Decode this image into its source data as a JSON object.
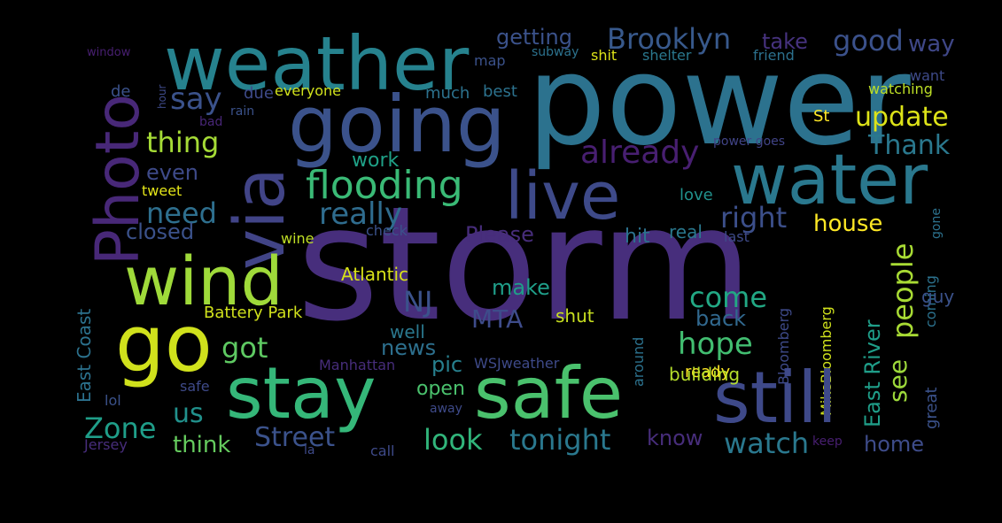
{
  "words": {
    "storm": {
      "text": "storm",
      "color": "#472e7c"
    },
    "power": {
      "text": "power",
      "color": "#2c728e"
    },
    "weather": {
      "text": "weather",
      "color": "#26828e"
    },
    "going": {
      "text": "going",
      "color": "#3b528b"
    },
    "stay": {
      "text": "stay",
      "color": "#35b779"
    },
    "safe": {
      "text": "safe",
      "color": "#4ac16d"
    },
    "still": {
      "text": "still",
      "color": "#3e4989"
    },
    "water": {
      "text": "water",
      "color": "#2a788e"
    },
    "live": {
      "text": "live",
      "color": "#3e4a89"
    },
    "wind": {
      "text": "wind",
      "color": "#9fda3a"
    },
    "go": {
      "text": "go",
      "color": "#d0e11c"
    },
    "via": {
      "text": "via",
      "color": "#414487"
    },
    "photo": {
      "text": "Photo",
      "color": "#482878"
    },
    "flooding": {
      "text": "flooding",
      "color": "#3aba76"
    },
    "brooklyn": {
      "text": "Brooklyn",
      "color": "#38598c"
    },
    "getting": {
      "text": "getting",
      "color": "#3b528b"
    },
    "take": {
      "text": "take",
      "color": "#46327e"
    },
    "good": {
      "text": "good",
      "color": "#3b518b"
    },
    "way": {
      "text": "way",
      "color": "#3f4788"
    },
    "update": {
      "text": "update",
      "color": "#dde318"
    },
    "thank": {
      "text": "Thank",
      "color": "#2a788e"
    },
    "already": {
      "text": "already",
      "color": "#481f71"
    },
    "say": {
      "text": "say",
      "color": "#3b528b"
    },
    "thing": {
      "text": "thing",
      "color": "#a5db36"
    },
    "need": {
      "text": "need",
      "color": "#2e6f8e"
    },
    "really": {
      "text": "really",
      "color": "#2f6c8e"
    },
    "right": {
      "text": "right",
      "color": "#3c4f8a"
    },
    "people": {
      "text": "people",
      "color": "#a8db34"
    },
    "house": {
      "text": "house",
      "color": "#fde725"
    },
    "come": {
      "text": "come",
      "color": "#22a884"
    },
    "hope": {
      "text": "hope",
      "color": "#42be71"
    },
    "make": {
      "text": "make",
      "color": "#1f9e89"
    },
    "nj": {
      "text": "NJ",
      "color": "#3b528b"
    },
    "mta": {
      "text": "MTA",
      "color": "#3e4c8a"
    },
    "got": {
      "text": "got",
      "color": "#5ec962"
    },
    "street": {
      "text": "Street",
      "color": "#3b528b"
    },
    "look": {
      "text": "look",
      "color": "#31b57b"
    },
    "tonight": {
      "text": "tonight",
      "color": "#2a788e"
    },
    "watch": {
      "text": "watch",
      "color": "#2a788e"
    },
    "zone": {
      "text": "Zone",
      "color": "#1f9e89"
    },
    "us": {
      "text": "us",
      "color": "#21918c"
    },
    "think": {
      "text": "think",
      "color": "#65cb5e"
    },
    "home": {
      "text": "home",
      "color": "#3e4c8a"
    },
    "know": {
      "text": "know",
      "color": "#472d7b"
    },
    "back": {
      "text": "back",
      "color": "#31688e"
    },
    "even": {
      "text": "even",
      "color": "#3e4a89"
    },
    "work": {
      "text": "work",
      "color": "#1fa187"
    },
    "closed": {
      "text": "closed",
      "color": "#3b528b"
    },
    "please": {
      "text": "Please",
      "color": "#472d7b"
    },
    "hit": {
      "text": "hit",
      "color": "#2c728e"
    },
    "real": {
      "text": "real",
      "color": "#2a788e"
    },
    "news": {
      "text": "news",
      "color": "#2d708e"
    },
    "pic": {
      "text": "pic",
      "color": "#27808e"
    },
    "open": {
      "text": "open",
      "color": "#4ac16d"
    },
    "atlantic": {
      "text": "Atlantic",
      "color": "#d8e219"
    },
    "battery_park": {
      "text": "Battery Park",
      "color": "#d0e11c"
    },
    "well": {
      "text": "well",
      "color": "#2a788e"
    },
    "shut": {
      "text": "shut",
      "color": "#c8e020"
    },
    "ready": {
      "text": "ready",
      "color": "#fde725"
    },
    "building": {
      "text": "building",
      "color": "#b5de2b"
    },
    "st": {
      "text": "St",
      "color": "#fde725"
    },
    "love": {
      "text": "love",
      "color": "#21918c"
    },
    "tweet": {
      "text": "tweet",
      "color": "#e2e418"
    },
    "wine": {
      "text": "wine",
      "color": "#c0df25"
    },
    "check": {
      "text": "check",
      "color": "#3b528b"
    },
    "last": {
      "text": "last",
      "color": "#3e4a89"
    },
    "guy": {
      "text": "guy",
      "color": "#3b528b"
    },
    "subway": {
      "text": "subway",
      "color": "#2c728e"
    },
    "shit": {
      "text": "shit",
      "color": "#dde318"
    },
    "shelter": {
      "text": "shelter",
      "color": "#2a788e"
    },
    "friend": {
      "text": "friend",
      "color": "#2c718e"
    },
    "map": {
      "text": "map",
      "color": "#3b528b"
    },
    "much": {
      "text": "much",
      "color": "#2c728e"
    },
    "best": {
      "text": "best",
      "color": "#2c728e"
    },
    "everyone": {
      "text": "everyone",
      "color": "#d0e11c"
    },
    "due": {
      "text": "due",
      "color": "#3e4a89"
    },
    "rain": {
      "text": "rain",
      "color": "#3b528b"
    },
    "bad": {
      "text": "bad",
      "color": "#482677"
    },
    "de": {
      "text": "de",
      "color": "#3b528b"
    },
    "window": {
      "text": "window",
      "color": "#481f71"
    },
    "want": {
      "text": "want",
      "color": "#3e4a89"
    },
    "watching": {
      "text": "watching",
      "color": "#bddf26"
    },
    "power_goes": {
      "text": "power goes",
      "color": "#414487"
    },
    "lol": {
      "text": "lol",
      "color": "#3b528b"
    },
    "safe_small": {
      "text": "safe",
      "color": "#3e4a89"
    },
    "jersey": {
      "text": "Jersey",
      "color": "#472d7b"
    },
    "la": {
      "text": "la",
      "color": "#3e4a89"
    },
    "call": {
      "text": "call",
      "color": "#3e4a89"
    },
    "away": {
      "text": "away",
      "color": "#3e4a89"
    },
    "manhattan": {
      "text": "Manhattan",
      "color": "#472d7b"
    },
    "wsjweather": {
      "text": "WSJweather",
      "color": "#3e4a89"
    },
    "keep": {
      "text": "keep",
      "color": "#481f71"
    },
    "hour": {
      "text": "hour",
      "color": "#3e4a89"
    },
    "east_coast": {
      "text": "East Coast",
      "color": "#2c728e"
    },
    "east_river": {
      "text": "East River",
      "color": "#1f9e89"
    },
    "coming": {
      "text": "coming",
      "color": "#2c728e"
    },
    "great": {
      "text": "great",
      "color": "#3b528b"
    },
    "see": {
      "text": "see",
      "color": "#9dd93b"
    },
    "around": {
      "text": "around",
      "color": "#2c728e"
    },
    "bloomberg": {
      "text": "Bloomberg",
      "color": "#3e4a89"
    },
    "mikebloomberg": {
      "text": "MikeBloomberg",
      "color": "#d0e11c"
    },
    "gone": {
      "text": "gone",
      "color": "#2c728e"
    }
  }
}
